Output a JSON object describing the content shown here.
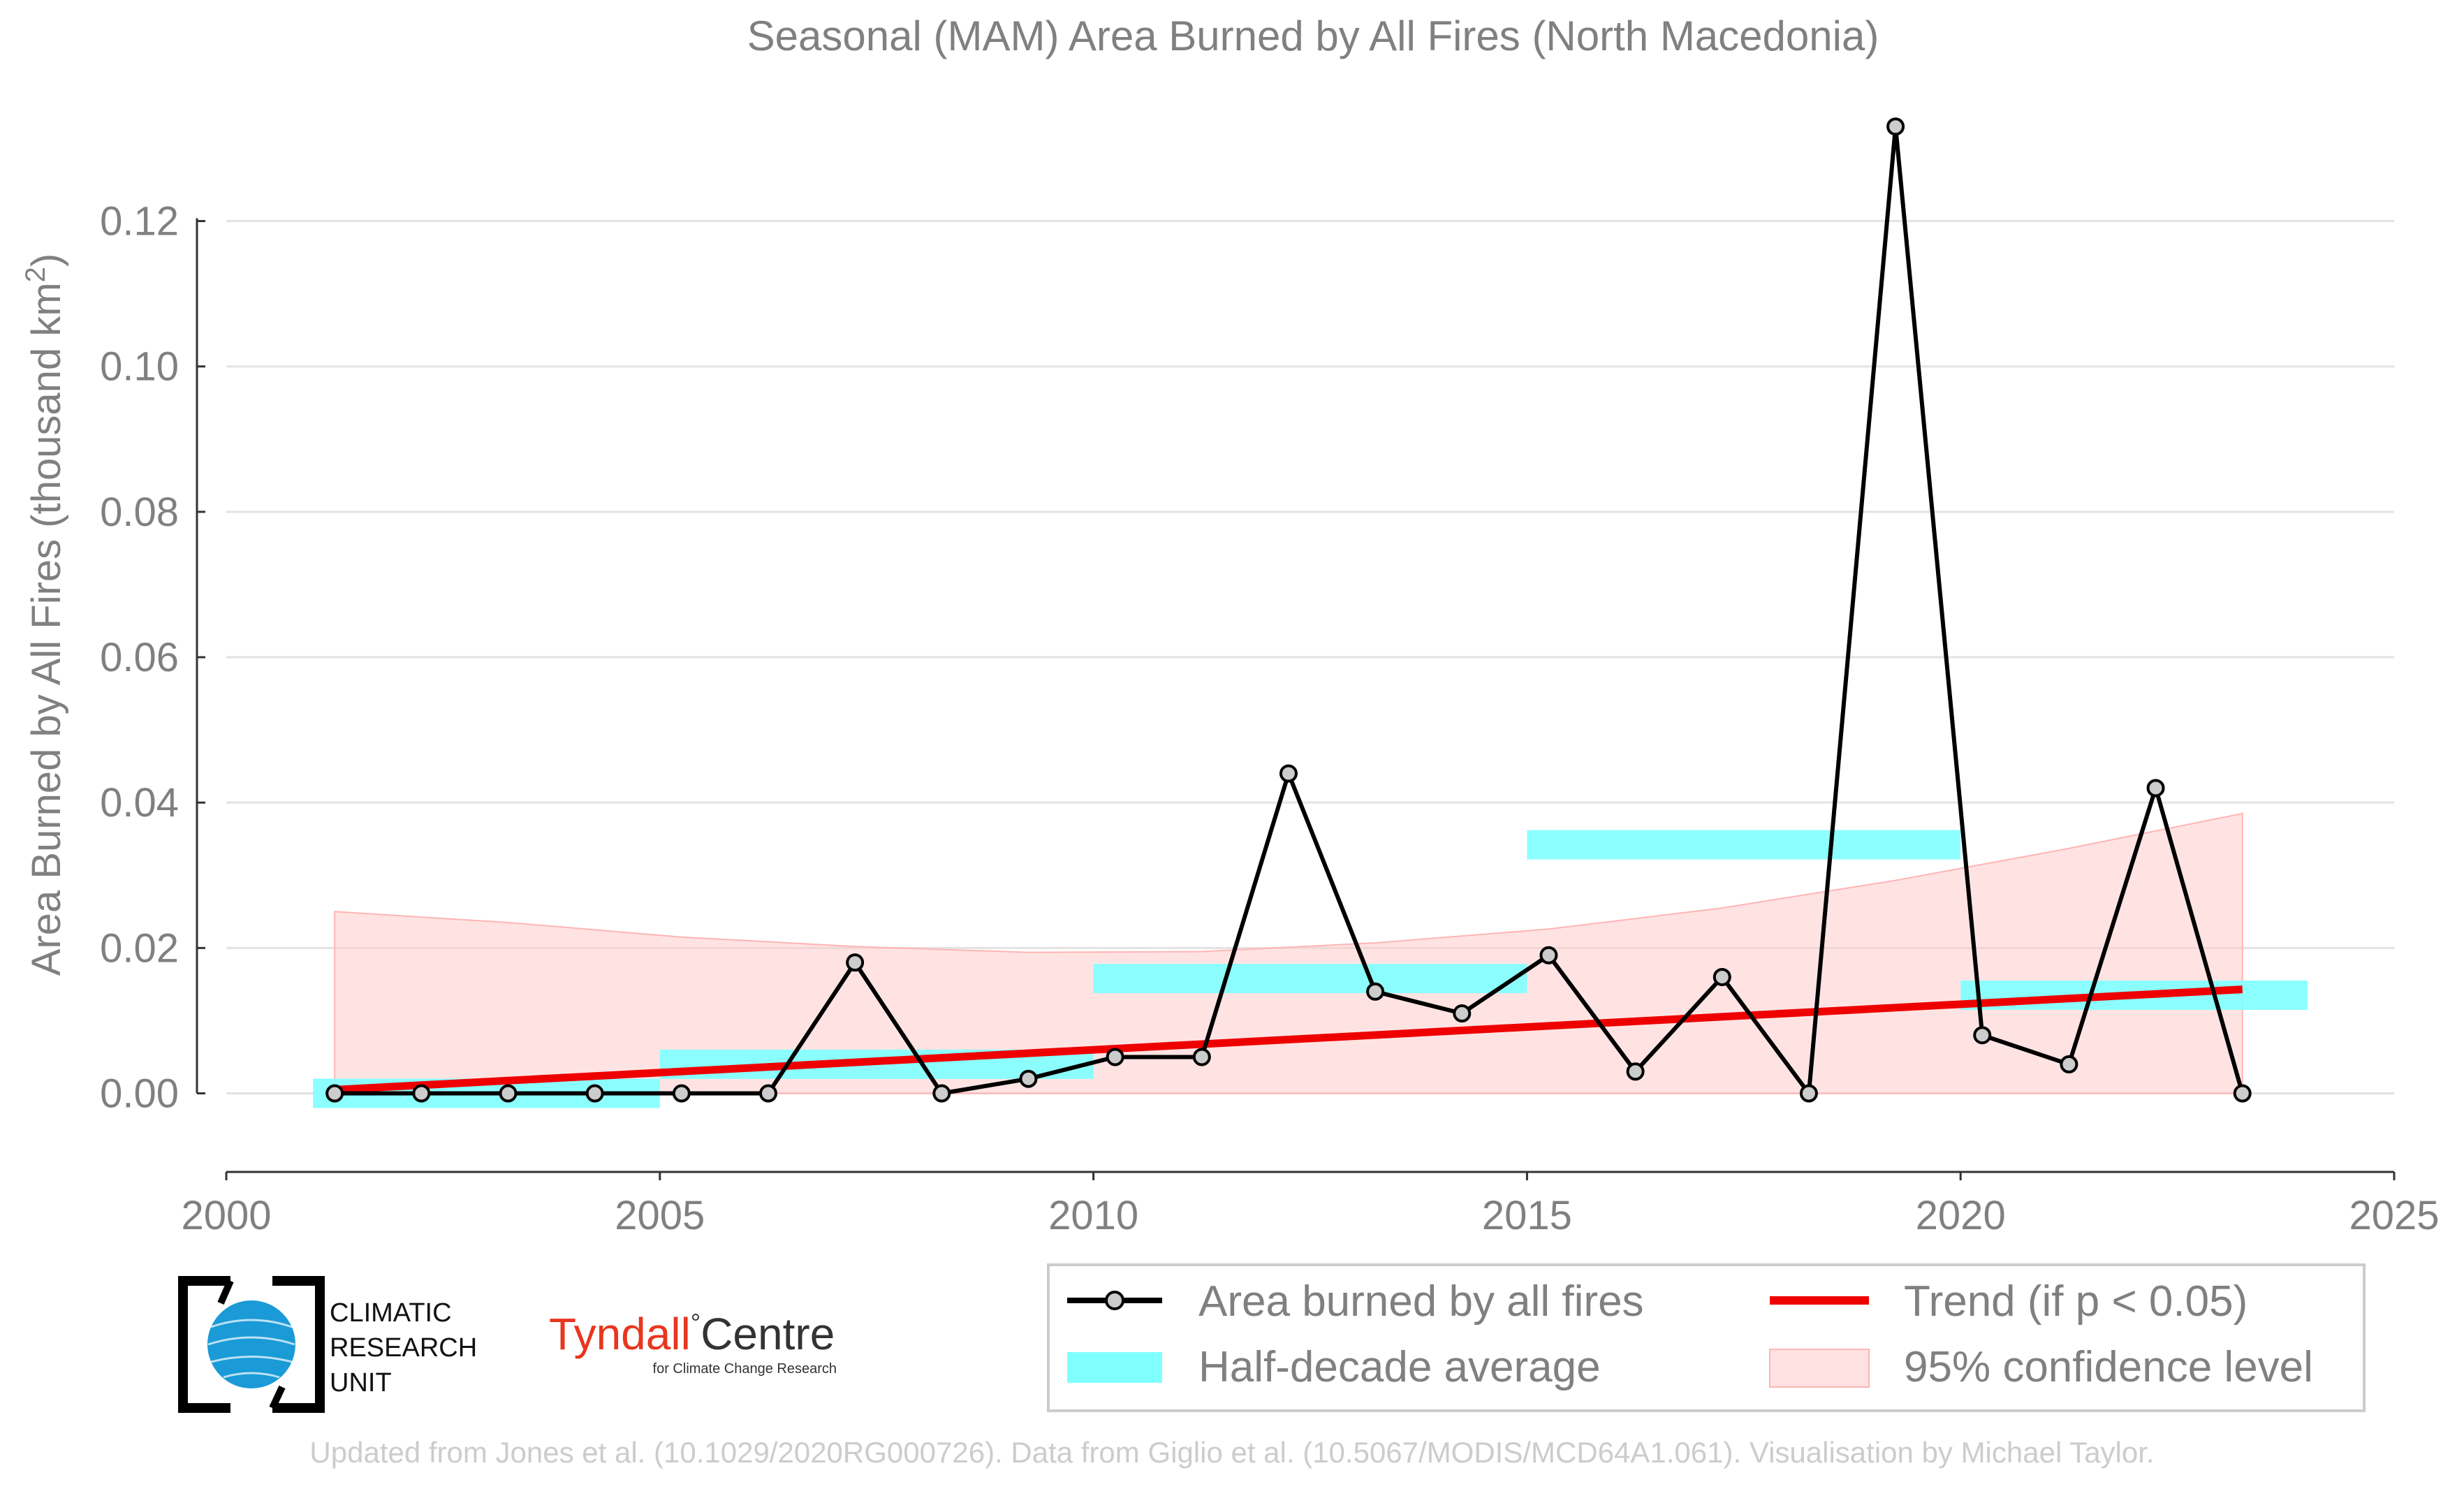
{
  "chart_data": {
    "type": "line",
    "title": "Seasonal (MAM) Area Burned by All Fires (North Macedonia)",
    "xlabel": "",
    "ylabel": "Area Burned by All Fires (thousand km",
    "ylabel_sup": "2",
    "ylabel_close": ")",
    "xlim": [
      2000,
      2025
    ],
    "ylim": [
      -0.011,
      0.136
    ],
    "x_ticks": [
      2000,
      2005,
      2010,
      2015,
      2020,
      2025
    ],
    "y_ticks": [
      0.0,
      0.02,
      0.04,
      0.06,
      0.08,
      0.1,
      0.12
    ],
    "y_tick_labels": [
      "0.00",
      "0.02",
      "0.04",
      "0.06",
      "0.08",
      "0.10",
      "0.12"
    ],
    "grid": "horizontal",
    "series": [
      {
        "name": "Area burned by all fires",
        "kind": "line-markers",
        "color": "#000000",
        "marker_fill": "#cccccc",
        "x": [
          2001.25,
          2002.25,
          2003.25,
          2004.25,
          2005.25,
          2006.25,
          2007.25,
          2008.25,
          2009.25,
          2010.25,
          2011.25,
          2012.25,
          2013.25,
          2014.25,
          2015.25,
          2016.25,
          2017.25,
          2018.25,
          2019.25,
          2020.25,
          2021.25,
          2022.25,
          2023.25
        ],
        "values": [
          0.0,
          0.0,
          0.0,
          0.0,
          0.0,
          0.0,
          0.018,
          0.0,
          0.002,
          0.005,
          0.005,
          0.044,
          0.014,
          0.011,
          0.019,
          0.003,
          0.016,
          0.0,
          0.133,
          0.008,
          0.004,
          0.042,
          0.0
        ]
      },
      {
        "name": "Half-decade average",
        "kind": "bars",
        "color": "#80ffff",
        "segments": [
          {
            "x0": 2001,
            "x1": 2005,
            "value": 0.0
          },
          {
            "x0": 2005,
            "x1": 2010,
            "value": 0.004
          },
          {
            "x0": 2010,
            "x1": 2015,
            "value": 0.0158
          },
          {
            "x0": 2015,
            "x1": 2020,
            "value": 0.0342
          },
          {
            "x0": 2020,
            "x1": 2024,
            "value": 0.0135
          }
        ]
      },
      {
        "name": "Trend (if p < 0.05)",
        "kind": "trend",
        "color": "#ee0000",
        "x": [
          2001.25,
          2023.25
        ],
        "values": [
          0.0005,
          0.0143
        ]
      },
      {
        "name": "95% confidence level",
        "kind": "band",
        "color": "#ffc8c8",
        "x": [
          2001.25,
          2003.25,
          2005.25,
          2007.25,
          2009.25,
          2011.25,
          2013.25,
          2015.25,
          2017.25,
          2019.25,
          2021.25,
          2023.25
        ],
        "upper": [
          0.025,
          0.0235,
          0.0215,
          0.0202,
          0.0194,
          0.0195,
          0.0207,
          0.0226,
          0.0255,
          0.0293,
          0.0337,
          0.0385
        ],
        "lower": [
          0,
          0,
          0,
          0,
          0,
          0,
          0,
          0,
          0,
          0,
          0,
          0
        ]
      }
    ],
    "legend": {
      "placement": "bottom-right",
      "entries": [
        "Area burned by all fires",
        "Trend (if p < 0.05)",
        "Half-decade average",
        "95% confidence level"
      ]
    }
  },
  "logos": {
    "cru": {
      "line1": "CLIMATIC",
      "line2": "RESEARCH",
      "line3": "UNIT"
    },
    "tyndall": {
      "name": "Tyndall",
      "degree": "°",
      "centre": "Centre",
      "subtitle": "for Climate Change Research",
      "name_color": "#e8361f",
      "centre_color": "#333333"
    }
  },
  "credit": "Updated from Jones et al. (10.1029/2020RG000726). Data from Giglio et al. (10.5067/MODIS/MCD64A1.061). Visualisation by Michael Taylor."
}
